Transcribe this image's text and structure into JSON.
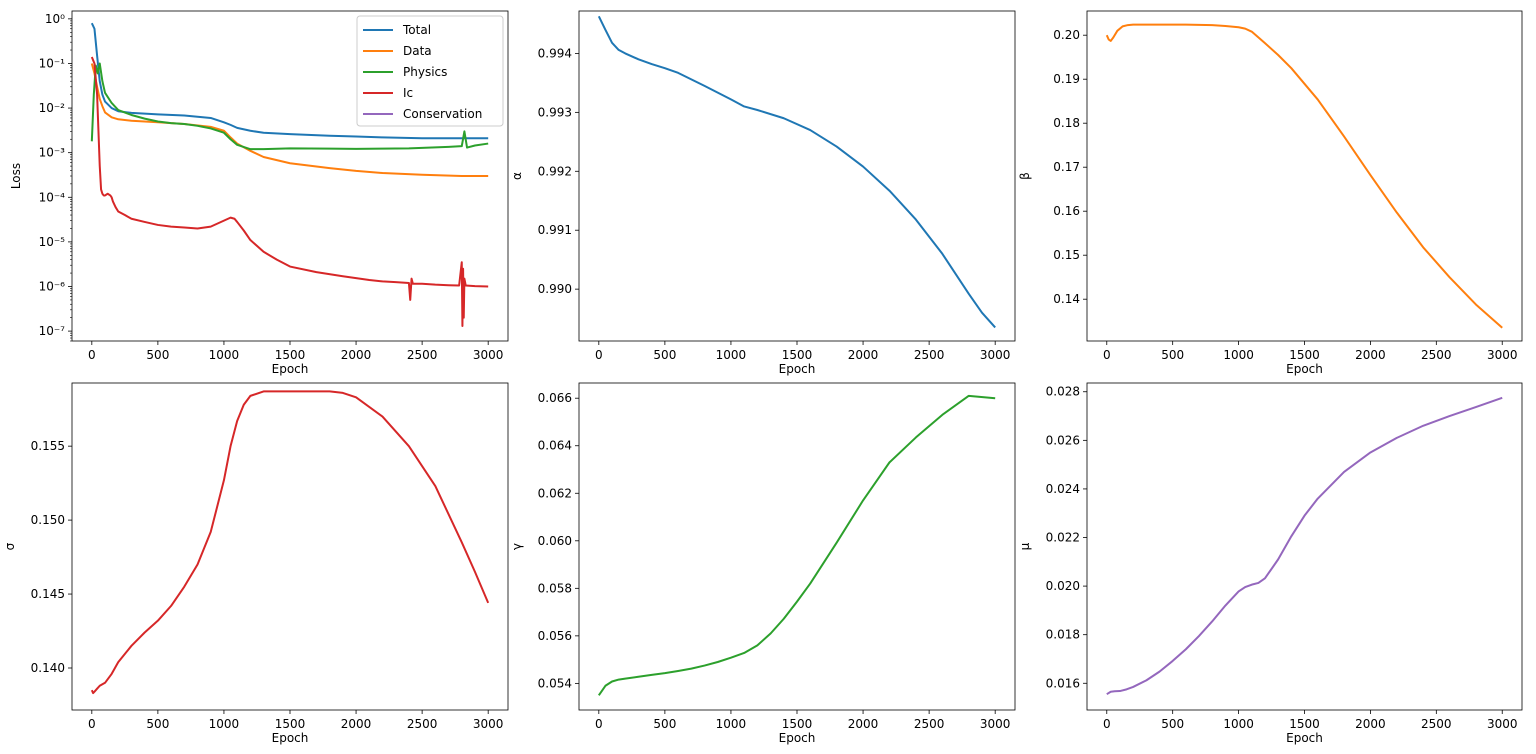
{
  "chart_data": [
    {
      "type": "line",
      "id": "loss",
      "xlabel": "Epoch",
      "ylabel": "Loss",
      "yscale": "log",
      "xlim": [
        -150,
        3150
      ],
      "ylim": [
        6e-08,
        1.5
      ],
      "xticks": [
        0,
        500,
        1000,
        1500,
        2000,
        2500,
        3000
      ],
      "xtick_labels": [
        "0",
        "500",
        "1000",
        "1500",
        "2000",
        "2500",
        "3000"
      ],
      "yticks": [
        1e-07,
        1e-06,
        1e-05,
        0.0001,
        0.001,
        0.01,
        0.1,
        1
      ],
      "ytick_labels": [
        "10⁻⁷",
        "10⁻⁶",
        "10⁻⁵",
        "10⁻⁴",
        "10⁻³",
        "10⁻²",
        "10⁻¹",
        "10⁰"
      ],
      "legend_position": "upper-right",
      "series": [
        {
          "name": "Total",
          "color": "#1f77b4",
          "x": [
            0,
            20,
            40,
            60,
            80,
            100,
            150,
            200,
            300,
            500,
            700,
            900,
            1000,
            1050,
            1100,
            1200,
            1300,
            1500,
            1800,
            2000,
            2200,
            2500,
            2800,
            3000
          ],
          "y": [
            0.8,
            0.6,
            0.15,
            0.04,
            0.02,
            0.014,
            0.01,
            0.0085,
            0.0078,
            0.0072,
            0.0068,
            0.006,
            0.0048,
            0.0042,
            0.0036,
            0.0031,
            0.0028,
            0.0026,
            0.0024,
            0.0023,
            0.0022,
            0.0021,
            0.0021,
            0.0021
          ]
        },
        {
          "name": "Data",
          "color": "#ff7f0e",
          "x": [
            0,
            20,
            40,
            60,
            80,
            100,
            150,
            200,
            300,
            500,
            700,
            900,
            1000,
            1050,
            1100,
            1200,
            1300,
            1500,
            1800,
            2000,
            2200,
            2500,
            2800,
            3000
          ],
          "y": [
            0.1,
            0.06,
            0.03,
            0.016,
            0.011,
            0.008,
            0.0062,
            0.0056,
            0.0052,
            0.0048,
            0.0044,
            0.0038,
            0.0031,
            0.0022,
            0.0016,
            0.0011,
            0.0008,
            0.00058,
            0.00045,
            0.00039,
            0.00035,
            0.00032,
            0.0003,
            0.0003
          ]
        },
        {
          "name": "Physics",
          "color": "#2ca02c",
          "x": [
            0,
            15,
            30,
            45,
            60,
            80,
            100,
            150,
            200,
            300,
            400,
            500,
            600,
            700,
            800,
            900,
            1000,
            1050,
            1100,
            1200,
            1300,
            1500,
            1800,
            2000,
            2200,
            2400,
            2500,
            2700,
            2800,
            2820,
            2840,
            2900,
            3000
          ],
          "y": [
            0.0018,
            0.02,
            0.09,
            0.06,
            0.1,
            0.04,
            0.022,
            0.013,
            0.009,
            0.007,
            0.0058,
            0.005,
            0.0046,
            0.0044,
            0.004,
            0.0035,
            0.0028,
            0.002,
            0.0015,
            0.0012,
            0.0012,
            0.00125,
            0.00123,
            0.00122,
            0.00123,
            0.00125,
            0.00128,
            0.00135,
            0.0014,
            0.003,
            0.0013,
            0.00145,
            0.0016
          ]
        },
        {
          "name": "Ic",
          "color": "#d62728",
          "x": [
            0,
            20,
            40,
            60,
            70,
            80,
            90,
            100,
            120,
            140,
            150,
            160,
            180,
            200,
            250,
            300,
            400,
            500,
            600,
            700,
            800,
            900,
            1000,
            1050,
            1080,
            1100,
            1150,
            1200,
            1300,
            1400,
            1500,
            1700,
            1900,
            2100,
            2200,
            2300,
            2400,
            2410,
            2420,
            2430,
            2500,
            2600,
            2700,
            2780,
            2800,
            2805,
            2810,
            2815,
            2820,
            2830,
            2900,
            3000
          ],
          "y": [
            0.14,
            0.1,
            0.02,
            0.0005,
            0.00015,
            0.00012,
            0.00011,
            0.00011,
            0.00012,
            0.00011,
            0.0001,
            8e-05,
            6e-05,
            4.8e-05,
            4e-05,
            3.3e-05,
            2.8e-05,
            2.4e-05,
            2.2e-05,
            2.1e-05,
            2e-05,
            2.2e-05,
            3e-05,
            3.5e-05,
            3.3e-05,
            2.8e-05,
            1.8e-05,
            1.1e-05,
            6e-06,
            4e-06,
            2.8e-06,
            2.1e-06,
            1.7e-06,
            1.4e-06,
            1.3e-06,
            1.25e-06,
            1.2e-06,
            5e-07,
            1.5e-06,
            1.15e-06,
            1.15e-06,
            1.1e-06,
            1.07e-06,
            1.05e-06,
            3.5e-06,
            1.3e-07,
            2.5e-06,
            2e-07,
            1.5e-06,
            1.05e-06,
            1.02e-06,
            1e-06
          ]
        },
        {
          "name": "Conservation",
          "color": "#9467bd",
          "x": [],
          "y": []
        }
      ]
    },
    {
      "type": "line",
      "id": "alpha",
      "xlabel": "Epoch",
      "ylabel": "α",
      "xlim": [
        -150,
        3150
      ],
      "ylim": [
        0.98912,
        0.99472
      ],
      "xticks": [
        0,
        500,
        1000,
        1500,
        2000,
        2500,
        3000
      ],
      "xtick_labels": [
        "0",
        "500",
        "1000",
        "1500",
        "2000",
        "2500",
        "3000"
      ],
      "yticks": [
        0.99,
        0.991,
        0.992,
        0.993,
        0.994
      ],
      "ytick_labels": [
        "0.990",
        "0.991",
        "0.992",
        "0.993",
        "0.994"
      ],
      "series": [
        {
          "name": "α",
          "color": "#1f77b4",
          "x": [
            0,
            50,
            100,
            150,
            200,
            300,
            400,
            500,
            600,
            800,
            1000,
            1100,
            1200,
            1400,
            1600,
            1800,
            2000,
            2200,
            2400,
            2600,
            2800,
            2900,
            3000
          ],
          "y": [
            0.99463,
            0.9944,
            0.99418,
            0.99406,
            0.994,
            0.9939,
            0.99382,
            0.99375,
            0.99367,
            0.99345,
            0.99322,
            0.9931,
            0.99304,
            0.9929,
            0.9927,
            0.99242,
            0.99208,
            0.99167,
            0.99118,
            0.9906,
            0.98992,
            0.9896,
            0.98935
          ]
        }
      ]
    },
    {
      "type": "line",
      "id": "beta",
      "xlabel": "Epoch",
      "ylabel": "β",
      "xlim": [
        -150,
        3150
      ],
      "ylim": [
        0.1305,
        0.2055
      ],
      "xticks": [
        0,
        500,
        1000,
        1500,
        2000,
        2500,
        3000
      ],
      "xtick_labels": [
        "0",
        "500",
        "1000",
        "1500",
        "2000",
        "2500",
        "3000"
      ],
      "yticks": [
        0.14,
        0.15,
        0.16,
        0.17,
        0.18,
        0.19,
        0.2
      ],
      "ytick_labels": [
        "0.14",
        "0.15",
        "0.16",
        "0.17",
        "0.18",
        "0.19",
        "0.20"
      ],
      "series": [
        {
          "name": "β",
          "color": "#ff7f0e",
          "x": [
            0,
            15,
            30,
            50,
            80,
            120,
            160,
            200,
            400,
            600,
            800,
            900,
            1000,
            1050,
            1100,
            1200,
            1300,
            1400,
            1600,
            1800,
            2000,
            2200,
            2400,
            2600,
            2800,
            3000
          ],
          "y": [
            0.2,
            0.199,
            0.1987,
            0.1995,
            0.201,
            0.202,
            0.2023,
            0.2024,
            0.2024,
            0.2024,
            0.2023,
            0.2021,
            0.2018,
            0.2015,
            0.2008,
            0.1982,
            0.1955,
            0.1925,
            0.1854,
            0.177,
            0.1682,
            0.1597,
            0.1518,
            0.145,
            0.1388,
            0.1335
          ]
        }
      ]
    },
    {
      "type": "line",
      "id": "sigma",
      "xlabel": "Epoch",
      "ylabel": "σ",
      "xlim": [
        -150,
        3150
      ],
      "ylim": [
        0.13716,
        0.15927
      ],
      "xticks": [
        0,
        500,
        1000,
        1500,
        2000,
        2500,
        3000
      ],
      "xtick_labels": [
        "0",
        "500",
        "1000",
        "1500",
        "2000",
        "2500",
        "3000"
      ],
      "yticks": [
        0.14,
        0.145,
        0.15,
        0.155
      ],
      "ytick_labels": [
        "0.140",
        "0.145",
        "0.150",
        "0.155"
      ],
      "series": [
        {
          "name": "σ",
          "color": "#d62728",
          "x": [
            0,
            10,
            20,
            40,
            60,
            100,
            150,
            200,
            300,
            400,
            500,
            600,
            700,
            800,
            900,
            1000,
            1050,
            1100,
            1150,
            1200,
            1300,
            1400,
            1500,
            1600,
            1800,
            1900,
            2000,
            2200,
            2400,
            2600,
            2800,
            2900,
            3000
          ],
          "y": [
            0.1385,
            0.1383,
            0.1384,
            0.1386,
            0.1388,
            0.139,
            0.1396,
            0.1404,
            0.1415,
            0.1424,
            0.1432,
            0.1442,
            0.1455,
            0.147,
            0.1492,
            0.1527,
            0.155,
            0.1567,
            0.1578,
            0.1584,
            0.1587,
            0.1587,
            0.1587,
            0.1587,
            0.1587,
            0.1586,
            0.1583,
            0.157,
            0.155,
            0.1523,
            0.1485,
            0.1465,
            0.1444
          ]
        }
      ]
    },
    {
      "type": "line",
      "id": "gamma",
      "xlabel": "Epoch",
      "ylabel": "γ",
      "xlim": [
        -150,
        3150
      ],
      "ylim": [
        0.05288,
        0.06664
      ],
      "xticks": [
        0,
        500,
        1000,
        1500,
        2000,
        2500,
        3000
      ],
      "xtick_labels": [
        "0",
        "500",
        "1000",
        "1500",
        "2000",
        "2500",
        "3000"
      ],
      "yticks": [
        0.054,
        0.056,
        0.058,
        0.06,
        0.062,
        0.064,
        0.066
      ],
      "ytick_labels": [
        "0.054",
        "0.056",
        "0.058",
        "0.060",
        "0.062",
        "0.064",
        "0.066"
      ],
      "series": [
        {
          "name": "γ",
          "color": "#2ca02c",
          "x": [
            0,
            50,
            100,
            150,
            200,
            300,
            400,
            500,
            600,
            700,
            800,
            900,
            1000,
            1100,
            1200,
            1300,
            1400,
            1500,
            1600,
            1800,
            2000,
            2200,
            2400,
            2600,
            2800,
            3000
          ],
          "y": [
            0.0535,
            0.0539,
            0.05408,
            0.05416,
            0.0542,
            0.05428,
            0.05436,
            0.05443,
            0.05452,
            0.05462,
            0.05475,
            0.0549,
            0.05508,
            0.05528,
            0.0556,
            0.0561,
            0.05672,
            0.05744,
            0.0582,
            0.05992,
            0.0617,
            0.0633,
            0.06435,
            0.0653,
            0.0661,
            0.066
          ]
        }
      ]
    },
    {
      "type": "line",
      "id": "mu",
      "xlabel": "Epoch",
      "ylabel": "μ",
      "xlim": [
        -150,
        3150
      ],
      "ylim": [
        0.0149,
        0.02836
      ],
      "xticks": [
        0,
        500,
        1000,
        1500,
        2000,
        2500,
        3000
      ],
      "xtick_labels": [
        "0",
        "500",
        "1000",
        "1500",
        "2000",
        "2500",
        "3000"
      ],
      "yticks": [
        0.016,
        0.018,
        0.02,
        0.022,
        0.024,
        0.026,
        0.028
      ],
      "ytick_labels": [
        "0.016",
        "0.018",
        "0.020",
        "0.022",
        "0.024",
        "0.026",
        "0.028"
      ],
      "series": [
        {
          "name": "μ",
          "color": "#9467bd",
          "x": [
            0,
            30,
            60,
            100,
            150,
            200,
            300,
            400,
            500,
            600,
            700,
            800,
            900,
            1000,
            1050,
            1100,
            1150,
            1200,
            1300,
            1400,
            1500,
            1600,
            1800,
            2000,
            2200,
            2400,
            2600,
            2800,
            3000
          ],
          "y": [
            0.01555,
            0.01565,
            0.01567,
            0.01568,
            0.01575,
            0.01585,
            0.01612,
            0.01648,
            0.01692,
            0.0174,
            0.01795,
            0.01855,
            0.0192,
            0.01978,
            0.01996,
            0.02006,
            0.02013,
            0.02032,
            0.0211,
            0.02205,
            0.0229,
            0.0236,
            0.0247,
            0.0255,
            0.0261,
            0.0266,
            0.027,
            0.02737,
            0.02775
          ]
        }
      ]
    }
  ]
}
